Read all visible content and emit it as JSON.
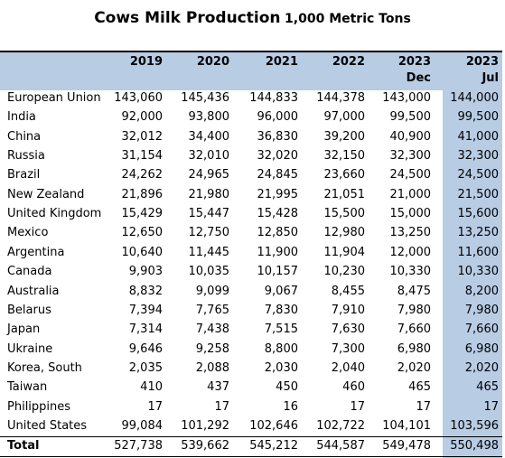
{
  "title": "Cows Milk Production",
  "subtitle": "1,000 Metric Tons",
  "columns": [
    {
      "year": "2019"
    },
    {
      "year": "2020"
    },
    {
      "year": "2021"
    },
    {
      "year": "2022"
    },
    {
      "year": "2023",
      "note": "Dec"
    },
    {
      "year": "2023",
      "note": "Jul"
    }
  ],
  "rows": [
    {
      "country": "European Union",
      "values": [
        "143,060",
        "145,436",
        "144,833",
        "144,378",
        "143,000",
        "144,000"
      ]
    },
    {
      "country": "India",
      "values": [
        "92,000",
        "93,800",
        "96,000",
        "97,000",
        "99,500",
        "99,500"
      ]
    },
    {
      "country": "China",
      "values": [
        "32,012",
        "34,400",
        "36,830",
        "39,200",
        "40,900",
        "41,000"
      ]
    },
    {
      "country": "Russia",
      "values": [
        "31,154",
        "32,010",
        "32,020",
        "32,150",
        "32,300",
        "32,300"
      ]
    },
    {
      "country": "Brazil",
      "values": [
        "24,262",
        "24,965",
        "24,845",
        "23,660",
        "24,500",
        "24,500"
      ]
    },
    {
      "country": "New Zealand",
      "values": [
        "21,896",
        "21,980",
        "21,995",
        "21,051",
        "21,000",
        "21,500"
      ]
    },
    {
      "country": "United Kingdom",
      "values": [
        "15,429",
        "15,447",
        "15,428",
        "15,500",
        "15,000",
        "15,600"
      ]
    },
    {
      "country": "Mexico",
      "values": [
        "12,650",
        "12,750",
        "12,850",
        "12,980",
        "13,250",
        "13,250"
      ]
    },
    {
      "country": "Argentina",
      "values": [
        "10,640",
        "11,445",
        "11,900",
        "11,904",
        "12,000",
        "11,600"
      ]
    },
    {
      "country": "Canada",
      "values": [
        "9,903",
        "10,035",
        "10,157",
        "10,230",
        "10,330",
        "10,330"
      ]
    },
    {
      "country": "Australia",
      "values": [
        "8,832",
        "9,099",
        "9,067",
        "8,455",
        "8,475",
        "8,200"
      ]
    },
    {
      "country": "Belarus",
      "values": [
        "7,394",
        "7,765",
        "7,830",
        "7,910",
        "7,980",
        "7,980"
      ]
    },
    {
      "country": "Japan",
      "values": [
        "7,314",
        "7,438",
        "7,515",
        "7,630",
        "7,660",
        "7,660"
      ]
    },
    {
      "country": "Ukraine",
      "values": [
        "9,646",
        "9,258",
        "8,800",
        "7,300",
        "6,980",
        "6,980"
      ]
    },
    {
      "country": "Korea, South",
      "values": [
        "2,035",
        "2,088",
        "2,030",
        "2,040",
        "2,020",
        "2,020"
      ]
    },
    {
      "country": "Taiwan",
      "values": [
        "410",
        "437",
        "450",
        "460",
        "465",
        "465"
      ]
    },
    {
      "country": "Philippines",
      "values": [
        "17",
        "17",
        "16",
        "17",
        "17",
        "17"
      ]
    },
    {
      "country": "United States",
      "values": [
        "99,084",
        "101,292",
        "102,646",
        "102,722",
        "104,101",
        "103,596"
      ]
    }
  ],
  "total": {
    "label": "Total",
    "values": [
      "527,738",
      "539,662",
      "545,212",
      "544,587",
      "549,478",
      "550,498"
    ]
  }
}
